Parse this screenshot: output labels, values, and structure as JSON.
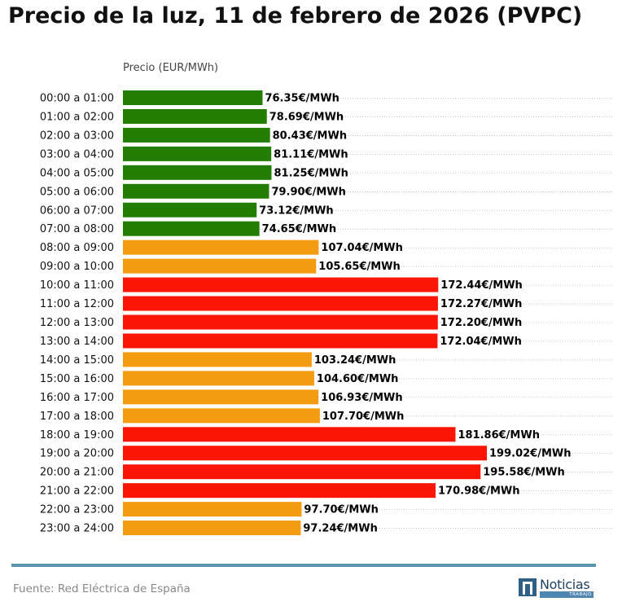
{
  "chart_data": {
    "type": "bar",
    "orientation": "horizontal",
    "title": "Precio de la luz, 11 de febrero de 2026 (PVPC)",
    "xlabel": "Precio (EUR/MWh)",
    "ylabel": "",
    "xlim": [
      0,
      210
    ],
    "grid": "horizontal dotted",
    "categories": [
      "00:00 a 01:00",
      "01:00 a 02:00",
      "02:00 a 03:00",
      "03:00 a 04:00",
      "04:00 a 05:00",
      "05:00 a 06:00",
      "06:00 a 07:00",
      "07:00 a 08:00",
      "08:00 a 09:00",
      "09:00 a 10:00",
      "10:00 a 11:00",
      "11:00 a 12:00",
      "12:00 a 13:00",
      "13:00 a 14:00",
      "14:00 a 15:00",
      "15:00 a 16:00",
      "16:00 a 17:00",
      "17:00 a 18:00",
      "18:00 a 19:00",
      "19:00 a 20:00",
      "20:00 a 21:00",
      "21:00 a 22:00",
      "22:00 a 23:00",
      "23:00 a 24:00"
    ],
    "values": [
      76.35,
      78.69,
      80.43,
      81.11,
      81.25,
      79.9,
      73.12,
      74.65,
      107.04,
      105.65,
      172.44,
      172.27,
      172.2,
      172.04,
      103.24,
      104.6,
      106.93,
      107.7,
      181.86,
      199.02,
      195.58,
      170.98,
      97.7,
      97.24
    ],
    "data_labels": [
      "76.35€/MWh",
      "78.69€/MWh",
      "80.43€/MWh",
      "81.11€/MWh",
      "81.25€/MWh",
      "79.90€/MWh",
      "73.12€/MWh",
      "74.65€/MWh",
      "107.04€/MWh",
      "105.65€/MWh",
      "172.44€/MWh",
      "172.27€/MWh",
      "172.20€/MWh",
      "172.04€/MWh",
      "103.24€/MWh",
      "104.60€/MWh",
      "106.93€/MWh",
      "107.70€/MWh",
      "181.86€/MWh",
      "199.02€/MWh",
      "195.58€/MWh",
      "170.98€/MWh",
      "97.70€/MWh",
      "97.24€/MWh"
    ],
    "levels": [
      "low",
      "low",
      "low",
      "low",
      "low",
      "low",
      "low",
      "low",
      "medium",
      "medium",
      "high",
      "high",
      "high",
      "high",
      "medium",
      "medium",
      "medium",
      "medium",
      "high",
      "high",
      "high",
      "high",
      "medium",
      "medium"
    ],
    "colors": {
      "low": "#237d02",
      "medium": "#f39c12",
      "high": "#fb1505"
    }
  },
  "footer": {
    "source": "Fuente: Red Eléctrica de España",
    "logo_word": "Noticias",
    "logo_sub": "TRABAJO",
    "line_color": "#5b93ad"
  }
}
